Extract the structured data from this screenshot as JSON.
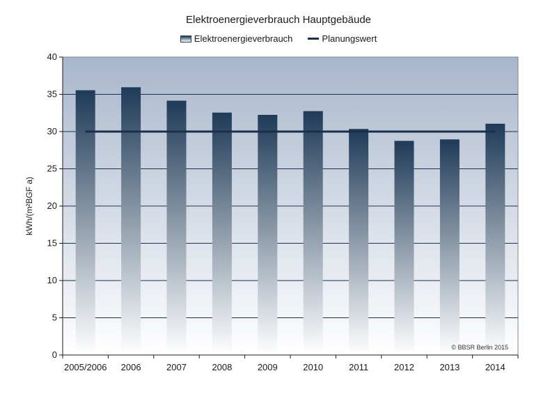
{
  "chart_data": {
    "type": "bar",
    "title": "Elektroenergieverbrauch Hauptgebäude",
    "ylabel": "kWh/(m²BGF a)",
    "xlabel": "",
    "categories": [
      "2005/2006",
      "2006",
      "2007",
      "2008",
      "2009",
      "2010",
      "2011",
      "2012",
      "2013",
      "2014"
    ],
    "series": [
      {
        "name": "Elektroenergieverbrauch",
        "type": "bar",
        "values": [
          35.5,
          35.9,
          34.1,
          32.5,
          32.2,
          32.7,
          30.3,
          28.7,
          28.9,
          31.0
        ]
      },
      {
        "name": "Planungswert",
        "type": "line",
        "values": [
          30,
          30,
          30,
          30,
          30,
          30,
          30,
          30,
          30,
          30
        ]
      }
    ],
    "ylim": [
      0,
      40
    ],
    "yticks": [
      0,
      5,
      10,
      15,
      20,
      25,
      30,
      35,
      40
    ],
    "grid": true,
    "legend_position": "top-center",
    "annotation": "© BBSR Berlin 2015",
    "colors": {
      "bar_top": "#1f3b58",
      "bar_bottom": "#ffffff",
      "line": "#1b2f4a",
      "plot_top": "#a8b6cc",
      "plot_bottom": "#ffffff"
    }
  }
}
